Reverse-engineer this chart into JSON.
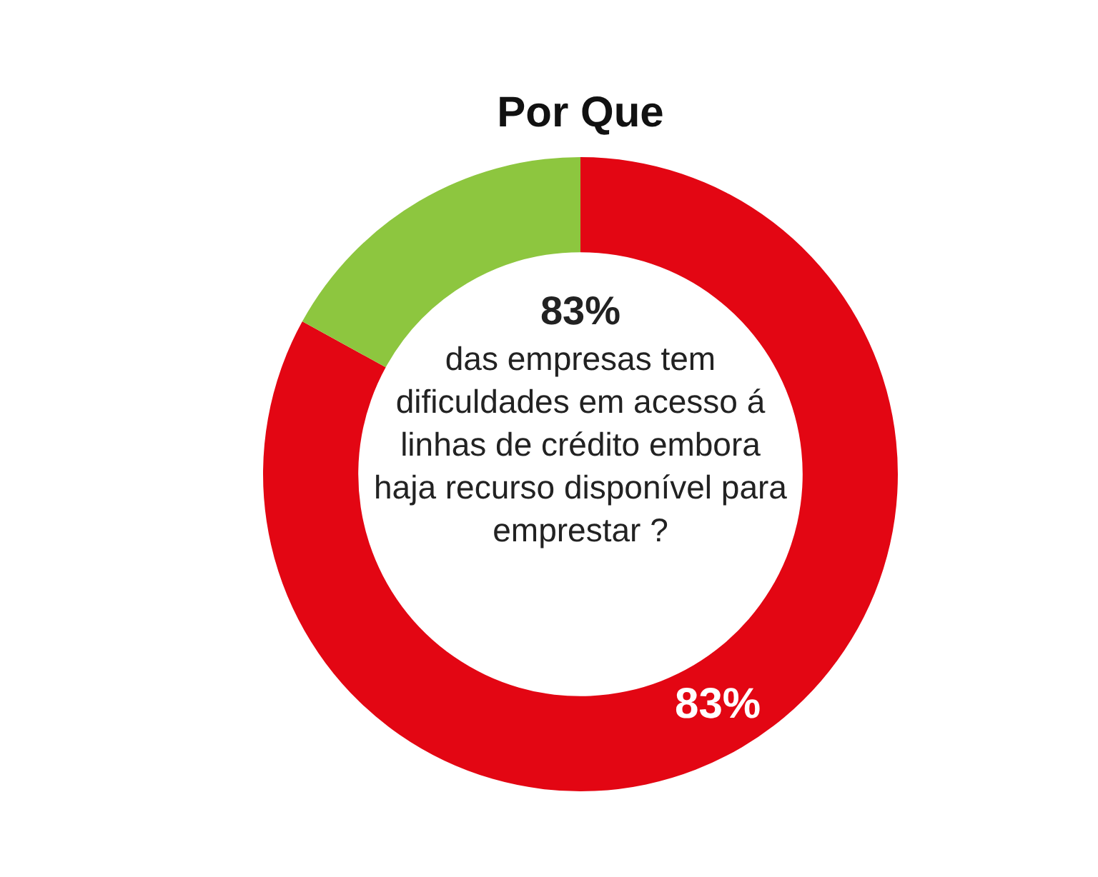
{
  "chart_data": {
    "type": "donut",
    "title": "Por Que",
    "categories": [
      null,
      null
    ],
    "values": [
      83,
      17
    ],
    "colors": [
      "#e30613",
      "#8dc63f"
    ],
    "value_labels": [
      "83%",
      null
    ],
    "legend": false,
    "annotations": [
      "83%",
      "das empresas tem dificuldades em acesso á linhas de crédito embora haja recurso disponível para emprestar ?"
    ]
  }
}
